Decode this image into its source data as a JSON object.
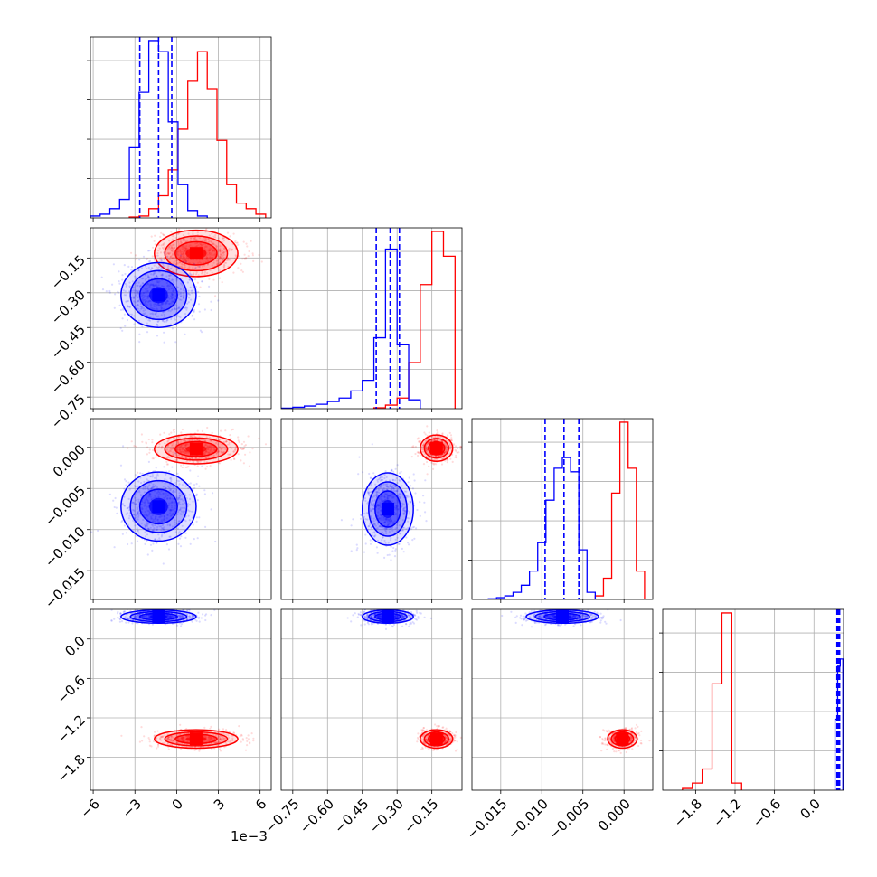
{
  "chart_data": {
    "type": "corner",
    "grid": true,
    "colors": {
      "series_a": "#0000ff",
      "series_b": "#ff0000"
    },
    "offset_text": "1e−3",
    "parameters": [
      {
        "range": [
          -6.2,
          6.8
        ],
        "ticks": [
          -6,
          -3,
          0,
          3,
          6
        ],
        "tick_labels": [
          "−6",
          "−3",
          "0",
          "3",
          "6"
        ]
      },
      {
        "range": [
          -0.8,
          -0.02
        ],
        "ticks": [
          -0.75,
          -0.6,
          -0.45,
          -0.3,
          -0.15
        ],
        "tick_labels": [
          "−0.75",
          "−0.60",
          "−0.45",
          "−0.30",
          "−0.15"
        ]
      },
      {
        "range": [
          -0.0185,
          0.0035
        ],
        "ticks": [
          -0.015,
          -0.01,
          -0.005,
          0.0
        ],
        "tick_labels": [
          "−0.015",
          "−0.010",
          "−0.005",
          "0.000"
        ]
      },
      {
        "range": [
          -2.3,
          0.45
        ],
        "ticks": [
          -1.8,
          -1.2,
          -0.6,
          0.0
        ],
        "tick_labels": [
          "−1.8",
          "−1.2",
          "−0.6",
          "0.0"
        ]
      }
    ],
    "diagonal_histograms": [
      {
        "series_a": {
          "bins": [
            -6.2,
            -5.5,
            -4.8,
            -4.1,
            -3.4,
            -2.7,
            -2.0,
            -1.3,
            -0.6,
            0.1,
            0.8,
            1.5,
            2.2
          ],
          "counts": [
            1,
            2,
            5,
            10,
            38,
            68,
            96,
            90,
            52,
            18,
            4,
            1
          ]
        },
        "series_b": {
          "bins": [
            -3.4,
            -2.7,
            -2.0,
            -1.3,
            -0.6,
            0.1,
            0.8,
            1.5,
            2.2,
            2.9,
            3.6,
            4.3,
            5.0,
            5.7,
            6.4
          ],
          "counts": [
            0.5,
            1,
            5,
            12,
            26,
            48,
            74,
            90,
            70,
            42,
            18,
            8,
            5,
            2
          ]
        },
        "quantiles_a": [
          -2.65,
          -1.3,
          -0.35
        ]
      },
      {
        "series_a": {
          "bins": [
            -0.8,
            -0.75,
            -0.7,
            -0.65,
            -0.6,
            -0.55,
            -0.5,
            -0.45,
            -0.4,
            -0.35,
            -0.3,
            -0.25,
            -0.2
          ],
          "counts": [
            0.3,
            0.8,
            1.5,
            2.5,
            4,
            6,
            10,
            16,
            40,
            90,
            36,
            5
          ]
        },
        "series_b": {
          "bins": [
            -0.4,
            -0.35,
            -0.3,
            -0.25,
            -0.2,
            -0.15,
            -0.1,
            -0.05
          ],
          "counts": [
            0.5,
            2,
            6,
            26,
            70,
            100,
            86
          ]
        },
        "quantiles_a": [
          -0.39,
          -0.33,
          -0.29
        ]
      },
      {
        "series_a": {
          "bins": [
            -0.0165,
            -0.0155,
            -0.0145,
            -0.0135,
            -0.0125,
            -0.0115,
            -0.0105,
            -0.0095,
            -0.0085,
            -0.0075,
            -0.0065,
            -0.0055,
            -0.0045,
            -0.0035
          ],
          "counts": [
            0.4,
            1,
            2,
            4,
            8,
            16,
            32,
            56,
            74,
            80,
            72,
            28,
            4
          ]
        },
        "series_b": {
          "bins": [
            -0.0035,
            -0.0025,
            -0.0015,
            -0.0005,
            0.0005,
            0.0015,
            0.0025
          ],
          "counts": [
            2,
            12,
            60,
            100,
            74,
            16
          ]
        },
        "quantiles_a": [
          -0.0096,
          -0.0073,
          -0.0055
        ]
      },
      {
        "series_a": {
          "bins": [
            0.32,
            0.36,
            0.4,
            0.44
          ],
          "counts": [
            40,
            70,
            74
          ]
        },
        "series_b": {
          "bins": [
            -2.0,
            -1.85,
            -1.7,
            -1.55,
            -1.4,
            -1.25,
            -1.1
          ],
          "counts": [
            1,
            4,
            12,
            60,
            100,
            4
          ]
        },
        "quantiles_a": [
          0.35,
          0.37,
          0.39
        ]
      }
    ],
    "joint_distributions": [
      {
        "row": 1,
        "col": 0,
        "series_a": {
          "mean": [
            -1.3,
            -0.31
          ],
          "sd": [
            1.35,
            0.07
          ]
        },
        "series_b": {
          "mean": [
            1.4,
            -0.13
          ],
          "sd": [
            1.5,
            0.05
          ]
        }
      },
      {
        "row": 2,
        "col": 0,
        "series_a": {
          "mean": [
            -1.3,
            -0.0072
          ],
          "sd": [
            1.35,
            0.0021
          ]
        },
        "series_b": {
          "mean": [
            1.4,
            -0.0002
          ],
          "sd": [
            1.5,
            0.0009
          ]
        }
      },
      {
        "row": 2,
        "col": 1,
        "series_a": {
          "mean": [
            -0.34,
            -0.0075
          ],
          "sd": [
            0.055,
            0.0022
          ]
        },
        "series_b": {
          "mean": [
            -0.13,
            -0.0001
          ],
          "sd": [
            0.035,
            0.0008
          ]
        }
      },
      {
        "row": 3,
        "col": 0,
        "series_a": {
          "mean": [
            -1.3,
            0.34
          ],
          "sd": [
            1.35,
            0.05
          ]
        },
        "series_b": {
          "mean": [
            1.4,
            -1.52
          ],
          "sd": [
            1.5,
            0.07
          ]
        }
      },
      {
        "row": 3,
        "col": 1,
        "series_a": {
          "mean": [
            -0.34,
            0.34
          ],
          "sd": [
            0.055,
            0.05
          ]
        },
        "series_b": {
          "mean": [
            -0.13,
            -1.52
          ],
          "sd": [
            0.035,
            0.07
          ]
        }
      },
      {
        "row": 3,
        "col": 2,
        "series_a": {
          "mean": [
            -0.0075,
            0.34
          ],
          "sd": [
            0.0022,
            0.05
          ]
        },
        "series_b": {
          "mean": [
            -0.0002,
            -1.52
          ],
          "sd": [
            0.0009,
            0.07
          ]
        }
      }
    ]
  }
}
